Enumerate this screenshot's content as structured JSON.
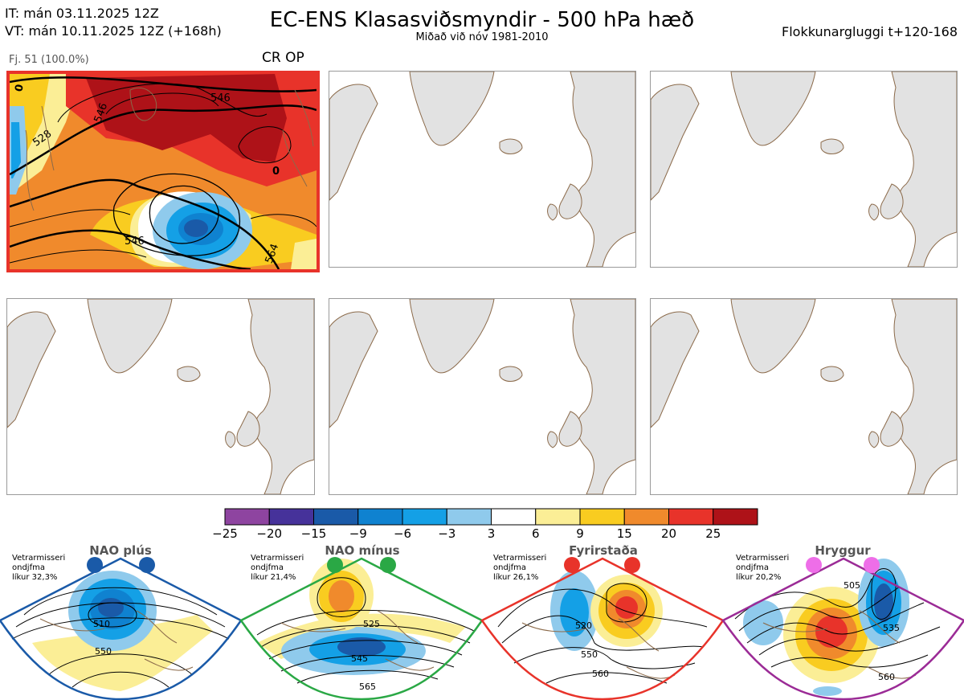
{
  "header": {
    "it_line": "IT: mán 03.11.2025 12Z",
    "vt_line": "VT: mán 10.11.2025 12Z  (+168h)",
    "title": "EC-ENS Klasasviðsmyndir - 500 hPa hæð",
    "subtitle": "Miðað við nóv 1981-2010",
    "window": "Flokkunargluggi t+120-168"
  },
  "cluster_panel": {
    "member_label": "Fj. 51 (100.0%)",
    "flags": "CR OP",
    "contour_labels": [
      "546",
      "546",
      "546",
      "528",
      "564",
      "0",
      "0"
    ]
  },
  "colors": {
    "neg_strong": "#8e44a0",
    "neg_dark_blue": "#1e5aa8",
    "neg_mid_blue": "#0f9ae0",
    "neg_light_blue": "#8fc8ec",
    "neutral": "#ffffff",
    "pos_light": "#fbee96",
    "pos_yellow": "#f9cc20",
    "pos_orange": "#f08a2c",
    "pos_red": "#e8332a",
    "pos_dark_red": "#ae1218",
    "land": "#e2e2e2",
    "coast": "#8b6a4a",
    "cluster_border": "#e8332a"
  },
  "colorbar": {
    "ticks": [
      "−25",
      "−20",
      "−15",
      "−9",
      "−6",
      "−3",
      "3",
      "6",
      "9",
      "15",
      "20",
      "25"
    ],
    "bins": [
      "#8e44a0",
      "#46329a",
      "#1a5aa8",
      "#0f82d0",
      "#14a0e6",
      "#8fcaec",
      "#ffffff",
      "#fbee96",
      "#f9cc20",
      "#f08a2c",
      "#e8332a",
      "#ae1218"
    ]
  },
  "regimes": [
    {
      "name": "NAO plús",
      "note_line1": "Vetrarmisseri",
      "note_line2": "ondjfma",
      "note_line3": "líkur 32,3%",
      "color": "#1a5aa8",
      "labels": [
        "510",
        "550"
      ]
    },
    {
      "name": "NAO mínus",
      "note_line1": "Vetrarmisseri",
      "note_line2": "ondjfma",
      "note_line3": "líkur 21,4%",
      "color": "#2aa845",
      "labels": [
        "525",
        "545",
        "565"
      ]
    },
    {
      "name": "Fyrirstaða",
      "note_line1": "Vetrarmisseri",
      "note_line2": "ondjfma",
      "note_line3": "líkur 26,1%",
      "color": "#e8332a",
      "labels": [
        "520",
        "550",
        "560"
      ]
    },
    {
      "name": "Hryggur",
      "note_line1": "Vetrarmisseri",
      "note_line2": "ondjfma",
      "note_line3": "líkur 20,2%",
      "color": "#9b2b96",
      "labels": [
        "505",
        "535",
        "560"
      ]
    }
  ]
}
